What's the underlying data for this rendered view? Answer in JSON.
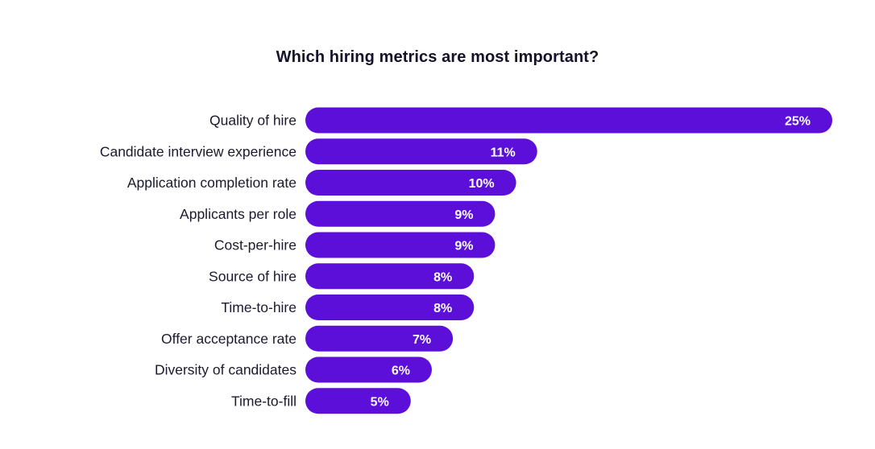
{
  "chart_data": {
    "type": "bar",
    "orientation": "horizontal",
    "title": "Which hiring metrics are most important?",
    "categories": [
      "Quality of hire",
      "Candidate interview experience",
      "Application completion rate",
      "Applicants per role",
      "Cost-per-hire",
      "Source of hire",
      "Time-to-hire",
      "Offer acceptance rate",
      "Diversity of candidates",
      "Time-to-fill"
    ],
    "values": [
      25,
      11,
      10,
      9,
      9,
      8,
      8,
      7,
      6,
      5
    ],
    "value_labels": [
      "25%",
      "11%",
      "10%",
      "9%",
      "9%",
      "8%",
      "8%",
      "7%",
      "6%",
      "5%"
    ],
    "unit": "%",
    "bar_color": "#5b0fd9",
    "label_color": "#ffffff",
    "grid": false,
    "legend": "none"
  }
}
